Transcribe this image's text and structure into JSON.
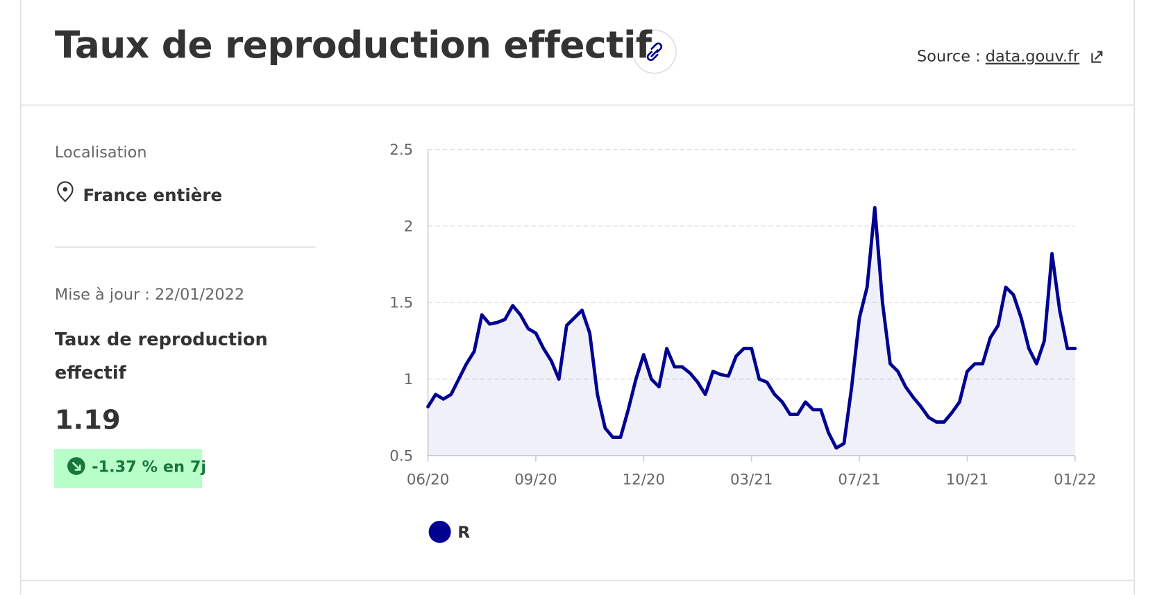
{
  "header": {
    "title": "Taux de reproduction effectif",
    "source_label": "Source :",
    "source_link": "data.gouv.fr"
  },
  "sidebar": {
    "location_label": "Localisation",
    "location": "France entière",
    "updated": "Mise à jour : 22/01/2022",
    "indicator": "Taux de reproduction effectif",
    "value": "1.19",
    "change": "-1.37 % en 7j"
  },
  "chart_data": {
    "type": "line",
    "categories": [
      "06/20",
      null,
      null,
      null,
      null,
      null,
      null,
      null,
      null,
      null,
      null,
      null,
      null,
      null,
      "09/20",
      null,
      null,
      null,
      null,
      null,
      null,
      null,
      null,
      null,
      null,
      null,
      null,
      null,
      "12/20",
      null,
      null,
      null,
      null,
      null,
      null,
      null,
      null,
      null,
      null,
      null,
      null,
      null,
      "03/21",
      null,
      null,
      null,
      null,
      null,
      null,
      null,
      null,
      null,
      null,
      null,
      null,
      null,
      "07/21",
      null,
      null,
      null,
      null,
      null,
      null,
      null,
      null,
      null,
      null,
      null,
      null,
      null,
      "10/21",
      null,
      null,
      null,
      null,
      null,
      null,
      null,
      null,
      null,
      null,
      null,
      null,
      null,
      "01/22"
    ],
    "series": [
      {
        "name": "R",
        "color": "#000091",
        "values": [
          0.82,
          0.9,
          0.87,
          0.9,
          1.0,
          1.1,
          1.18,
          1.42,
          1.36,
          1.37,
          1.39,
          1.48,
          1.42,
          1.33,
          1.3,
          1.2,
          1.12,
          1.0,
          1.35,
          1.4,
          1.45,
          1.3,
          0.9,
          0.68,
          0.62,
          0.62,
          0.8,
          1.0,
          1.16,
          1.0,
          0.95,
          1.2,
          1.08,
          1.08,
          1.04,
          0.98,
          0.9,
          1.05,
          1.03,
          1.02,
          1.15,
          1.2,
          1.2,
          1.0,
          0.98,
          0.9,
          0.85,
          0.77,
          0.77,
          0.85,
          0.8,
          0.8,
          0.65,
          0.55,
          0.58,
          0.95,
          1.4,
          1.6,
          2.12,
          1.5,
          1.1,
          1.05,
          0.95,
          0.88,
          0.82,
          0.75,
          0.72,
          0.72,
          0.78,
          0.85,
          1.05,
          1.1,
          1.1,
          1.27,
          1.35,
          1.6,
          1.55,
          1.4,
          1.2,
          1.1,
          1.25,
          1.82,
          1.45,
          1.2,
          1.2
        ]
      }
    ],
    "ylim": [
      0.5,
      2.5
    ],
    "yticks": [
      0.5,
      1,
      1.5,
      2,
      2.5
    ],
    "grid": true,
    "area": true,
    "legend": "bottom-left"
  }
}
